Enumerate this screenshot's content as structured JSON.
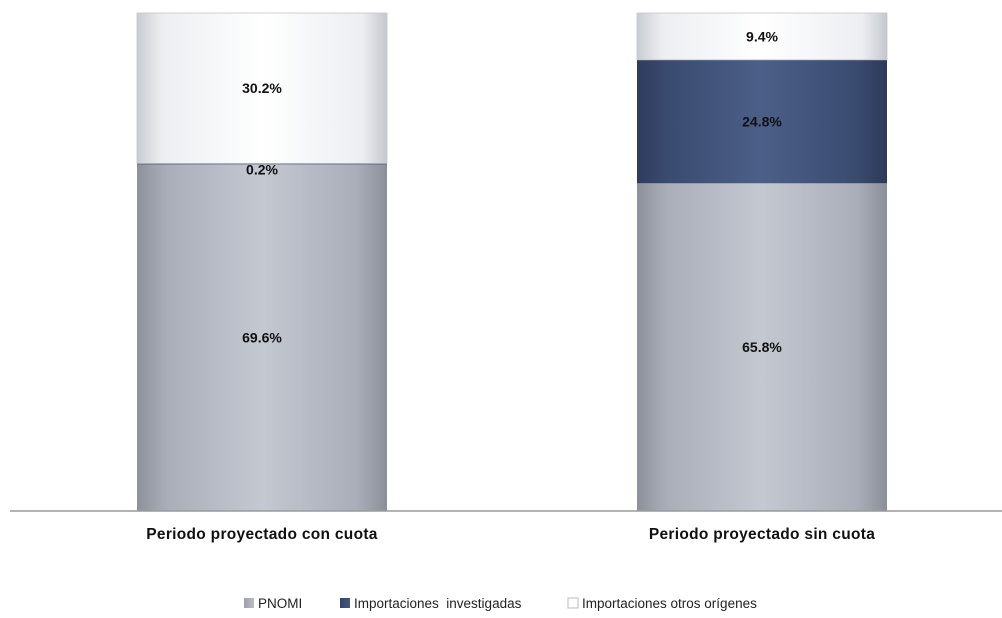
{
  "chart_data": {
    "type": "bar",
    "stacked": true,
    "percent_stacked": true,
    "categories": [
      "Periodo proyectado con cuota",
      "Periodo proyectado sin cuota"
    ],
    "series": [
      {
        "name": "PNOMI",
        "values": [
          69.6,
          65.8
        ],
        "labels": [
          "69.6%",
          "65.8%"
        ],
        "color": "#aab0bd"
      },
      {
        "name": "Importaciones  investigadas",
        "values": [
          0.2,
          24.8
        ],
        "labels": [
          "0.2%",
          "24.8%"
        ],
        "color": "#3e5078"
      },
      {
        "name": "Importaciones otros orígenes",
        "values": [
          30.2,
          9.4
        ],
        "labels": [
          "30.2%",
          "9.4%"
        ],
        "color": "#ffffff"
      }
    ],
    "ylim": [
      0,
      100
    ],
    "grid": false,
    "legend_position": "bottom"
  }
}
